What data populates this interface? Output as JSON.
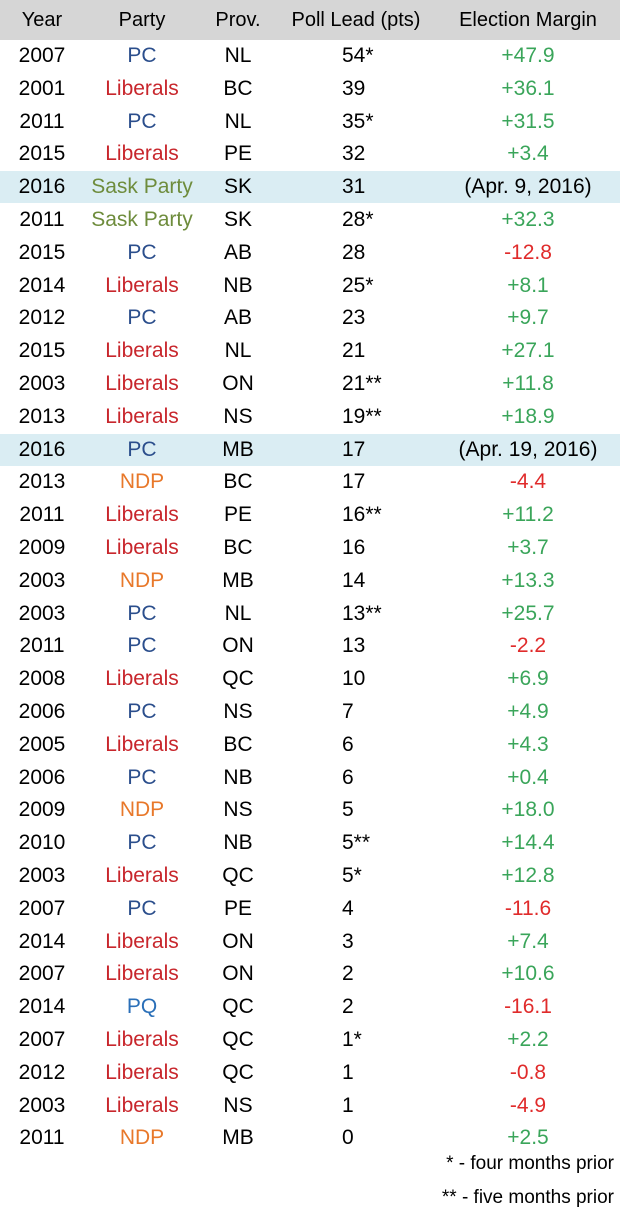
{
  "chart_data": {
    "type": "table",
    "columns": [
      "Year",
      "Party",
      "Prov.",
      "Poll Lead (pts)",
      "Election Margin"
    ],
    "rows": [
      {
        "year": "2007",
        "party": "PC",
        "prov": "NL",
        "lead": "54*",
        "margin": "+47.9"
      },
      {
        "year": "2001",
        "party": "Liberals",
        "prov": "BC",
        "lead": "39",
        "margin": "+36.1"
      },
      {
        "year": "2011",
        "party": "PC",
        "prov": "NL",
        "lead": "35*",
        "margin": "+31.5"
      },
      {
        "year": "2015",
        "party": "Liberals",
        "prov": "PE",
        "lead": "32",
        "margin": "+3.4"
      },
      {
        "year": "2016",
        "party": "Sask Party",
        "prov": "SK",
        "lead": "31",
        "margin": "(Apr. 9, 2016)"
      },
      {
        "year": "2011",
        "party": "Sask Party",
        "prov": "SK",
        "lead": "28*",
        "margin": "+32.3"
      },
      {
        "year": "2015",
        "party": "PC",
        "prov": "AB",
        "lead": "28",
        "margin": "-12.8"
      },
      {
        "year": "2014",
        "party": "Liberals",
        "prov": "NB",
        "lead": "25*",
        "margin": "+8.1"
      },
      {
        "year": "2012",
        "party": "PC",
        "prov": "AB",
        "lead": "23",
        "margin": "+9.7"
      },
      {
        "year": "2015",
        "party": "Liberals",
        "prov": "NL",
        "lead": "21",
        "margin": "+27.1"
      },
      {
        "year": "2003",
        "party": "Liberals",
        "prov": "ON",
        "lead": "21**",
        "margin": "+11.8"
      },
      {
        "year": "2013",
        "party": "Liberals",
        "prov": "NS",
        "lead": "19**",
        "margin": "+18.9"
      },
      {
        "year": "2016",
        "party": "PC",
        "prov": "MB",
        "lead": "17",
        "margin": "(Apr. 19, 2016)"
      },
      {
        "year": "2013",
        "party": "NDP",
        "prov": "BC",
        "lead": "17",
        "margin": "-4.4"
      },
      {
        "year": "2011",
        "party": "Liberals",
        "prov": "PE",
        "lead": "16**",
        "margin": "+11.2"
      },
      {
        "year": "2009",
        "party": "Liberals",
        "prov": "BC",
        "lead": "16",
        "margin": "+3.7"
      },
      {
        "year": "2003",
        "party": "NDP",
        "prov": "MB",
        "lead": "14",
        "margin": "+13.3"
      },
      {
        "year": "2003",
        "party": "PC",
        "prov": "NL",
        "lead": "13**",
        "margin": "+25.7"
      },
      {
        "year": "2011",
        "party": "PC",
        "prov": "ON",
        "lead": "13",
        "margin": "-2.2"
      },
      {
        "year": "2008",
        "party": "Liberals",
        "prov": "QC",
        "lead": "10",
        "margin": "+6.9"
      },
      {
        "year": "2006",
        "party": "PC",
        "prov": "NS",
        "lead": "7",
        "margin": "+4.9"
      },
      {
        "year": "2005",
        "party": "Liberals",
        "prov": "BC",
        "lead": "6",
        "margin": "+4.3"
      },
      {
        "year": "2006",
        "party": "PC",
        "prov": "NB",
        "lead": "6",
        "margin": "+0.4"
      },
      {
        "year": "2009",
        "party": "NDP",
        "prov": "NS",
        "lead": "5",
        "margin": "+18.0"
      },
      {
        "year": "2010",
        "party": "PC",
        "prov": "NB",
        "lead": "5**",
        "margin": "+14.4"
      },
      {
        "year": "2003",
        "party": "Liberals",
        "prov": "QC",
        "lead": "5*",
        "margin": "+12.8"
      },
      {
        "year": "2007",
        "party": "PC",
        "prov": "PE",
        "lead": "4",
        "margin": "-11.6"
      },
      {
        "year": "2014",
        "party": "Liberals",
        "prov": "ON",
        "lead": "3",
        "margin": "+7.4"
      },
      {
        "year": "2007",
        "party": "Liberals",
        "prov": "ON",
        "lead": "2",
        "margin": "+10.6"
      },
      {
        "year": "2014",
        "party": "PQ",
        "prov": "QC",
        "lead": "2",
        "margin": "-16.1"
      },
      {
        "year": "2007",
        "party": "Liberals",
        "prov": "QC",
        "lead": "1*",
        "margin": "+2.2"
      },
      {
        "year": "2012",
        "party": "Liberals",
        "prov": "QC",
        "lead": "1",
        "margin": "-0.8"
      },
      {
        "year": "2003",
        "party": "Liberals",
        "prov": "NS",
        "lead": "1",
        "margin": "-4.9"
      },
      {
        "year": "2011",
        "party": "NDP",
        "prov": "MB",
        "lead": "0",
        "margin": "+2.5"
      }
    ],
    "footnotes": [
      "* - four months prior",
      "** - five months prior"
    ]
  },
  "colors": {
    "party": {
      "PC": "#2b4e8c",
      "Liberals": "#c8262c",
      "Sask Party": "#6e8c3c",
      "NDP": "#e8782a",
      "PQ": "#2a6fb8"
    },
    "margin_positive": "#3aa55a",
    "margin_negative": "#e02b2b",
    "margin_pending": "#000000",
    "header_background": "#d6d6d6",
    "highlight_background": "#daedf3"
  }
}
